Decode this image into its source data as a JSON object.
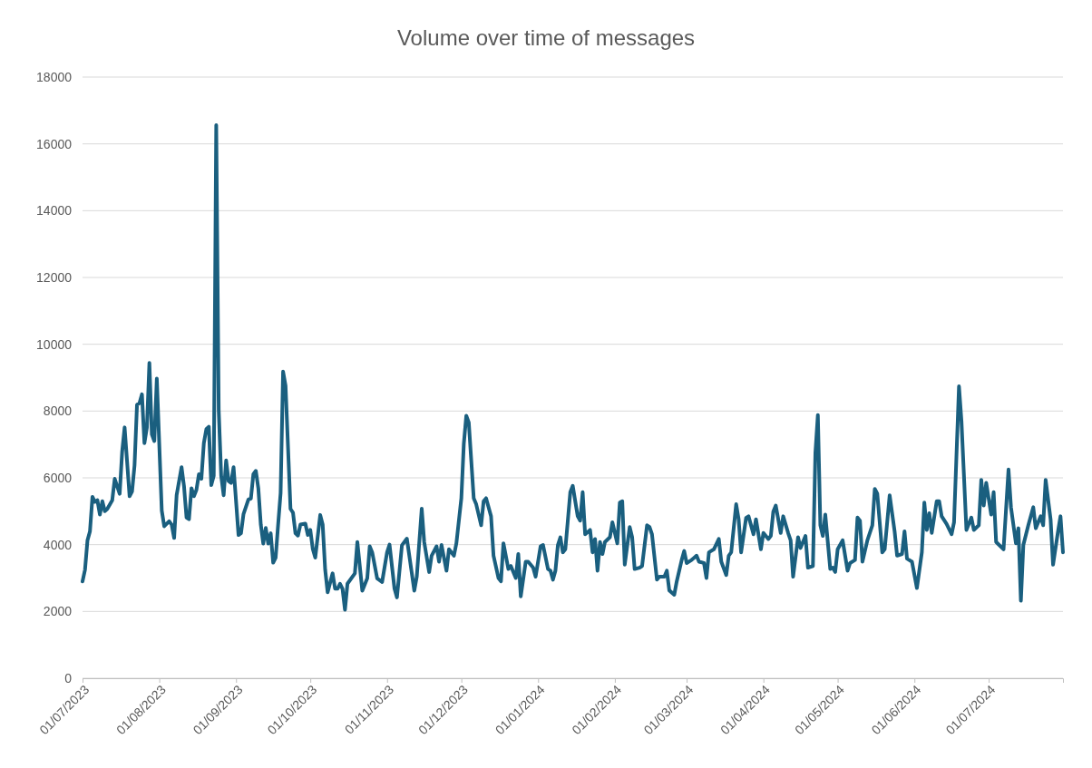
{
  "chart_data": {
    "type": "line",
    "title": "Volume over time of messages",
    "xlim": [
      "2023-07-01",
      "2024-07-31"
    ],
    "xticks": [
      {
        "value": "2023-07-01",
        "label": "01/07/2023"
      },
      {
        "value": "2023-08-01",
        "label": "01/08/2023"
      },
      {
        "value": "2023-09-01",
        "label": "01/09/2023"
      },
      {
        "value": "2023-10-01",
        "label": "01/10/2023"
      },
      {
        "value": "2023-11-01",
        "label": "01/11/2023"
      },
      {
        "value": "2023-12-01",
        "label": "01/12/2023"
      },
      {
        "value": "2024-01-01",
        "label": "01/01/2024"
      },
      {
        "value": "2024-02-01",
        "label": "01/02/2024"
      },
      {
        "value": "2024-03-01",
        "label": "01/03/2024"
      },
      {
        "value": "2024-04-01",
        "label": "01/04/2024"
      },
      {
        "value": "2024-05-01",
        "label": "01/05/2024"
      },
      {
        "value": "2024-06-01",
        "label": "01/06/2024"
      },
      {
        "value": "2024-07-01",
        "label": "01/07/2024"
      }
    ],
    "ylim": [
      0,
      18000
    ],
    "yticks": [
      0,
      2000,
      4000,
      6000,
      8000,
      10000,
      12000,
      14000,
      16000,
      18000
    ],
    "grid": "y",
    "line_style": "solid",
    "x": [
      "2023-07-01",
      "2023-07-02",
      "2023-07-03",
      "2023-07-04",
      "2023-07-05",
      "2023-07-06",
      "2023-07-07",
      "2023-07-08",
      "2023-07-09",
      "2023-07-10",
      "2023-07-11",
      "2023-07-13",
      "2023-07-14",
      "2023-07-16",
      "2023-07-17",
      "2023-07-18",
      "2023-07-20",
      "2023-07-21",
      "2023-07-22",
      "2023-07-23",
      "2023-07-24",
      "2023-07-25",
      "2023-07-26",
      "2023-07-27",
      "2023-07-28",
      "2023-07-29",
      "2023-07-30",
      "2023-07-31",
      "2023-08-02",
      "2023-08-03",
      "2023-08-05",
      "2023-08-06",
      "2023-08-07",
      "2023-08-08",
      "2023-08-10",
      "2023-08-11",
      "2023-08-12",
      "2023-08-13",
      "2023-08-14",
      "2023-08-15",
      "2023-08-16",
      "2023-08-17",
      "2023-08-18",
      "2023-08-19",
      "2023-08-20",
      "2023-08-21",
      "2023-08-22",
      "2023-08-23",
      "2023-08-24",
      "2023-08-25",
      "2023-08-26",
      "2023-08-27",
      "2023-08-28",
      "2023-08-29",
      "2023-08-30",
      "2023-08-31",
      "2023-09-02",
      "2023-09-03",
      "2023-09-04",
      "2023-09-06",
      "2023-09-07",
      "2023-09-08",
      "2023-09-09",
      "2023-09-10",
      "2023-09-11",
      "2023-09-12",
      "2023-09-13",
      "2023-09-14",
      "2023-09-15",
      "2023-09-16",
      "2023-09-17",
      "2023-09-18",
      "2023-09-19",
      "2023-09-20",
      "2023-09-21",
      "2023-09-23",
      "2023-09-24",
      "2023-09-25",
      "2023-09-26",
      "2023-09-27",
      "2023-09-29",
      "2023-09-30",
      "2023-10-01",
      "2023-10-02",
      "2023-10-03",
      "2023-10-05",
      "2023-10-06",
      "2023-10-07",
      "2023-10-08",
      "2023-10-10",
      "2023-10-11",
      "2023-10-12",
      "2023-10-13",
      "2023-10-14",
      "2023-10-15",
      "2023-10-16",
      "2023-10-19",
      "2023-10-20",
      "2023-10-22",
      "2023-10-24",
      "2023-10-25",
      "2023-10-26",
      "2023-10-28",
      "2023-10-30",
      "2023-11-01",
      "2023-11-02",
      "2023-11-04",
      "2023-11-05",
      "2023-11-07",
      "2023-11-09",
      "2023-11-12",
      "2023-11-13",
      "2023-11-15",
      "2023-11-16",
      "2023-11-18",
      "2023-11-19",
      "2023-11-21",
      "2023-11-22",
      "2023-11-23",
      "2023-11-25",
      "2023-11-26",
      "2023-11-28",
      "2023-11-29",
      "2023-12-01",
      "2023-12-02",
      "2023-12-03",
      "2023-12-04",
      "2023-12-06",
      "2023-12-07",
      "2023-12-09",
      "2023-12-10",
      "2023-12-11",
      "2023-12-13",
      "2023-12-14",
      "2023-12-16",
      "2023-12-17",
      "2023-12-18",
      "2023-12-20",
      "2023-12-21",
      "2023-12-23",
      "2023-12-24",
      "2023-12-25",
      "2023-12-27",
      "2023-12-28",
      "2023-12-30",
      "2023-12-31",
      "2024-01-02",
      "2024-01-03",
      "2024-01-05",
      "2024-01-06",
      "2024-01-07",
      "2024-01-08",
      "2024-01-09",
      "2024-01-10",
      "2024-01-11",
      "2024-01-12",
      "2024-01-14",
      "2024-01-15",
      "2024-01-17",
      "2024-01-18",
      "2024-01-19",
      "2024-01-20",
      "2024-01-22",
      "2024-01-23",
      "2024-01-24",
      "2024-01-25",
      "2024-01-26",
      "2024-01-27",
      "2024-01-28",
      "2024-01-30",
      "2024-01-31",
      "2024-02-02",
      "2024-02-03",
      "2024-02-04",
      "2024-02-05",
      "2024-02-07",
      "2024-02-08",
      "2024-02-09",
      "2024-02-11",
      "2024-02-12",
      "2024-02-14",
      "2024-02-15",
      "2024-02-16",
      "2024-02-18",
      "2024-02-19",
      "2024-02-21",
      "2024-02-22",
      "2024-02-23",
      "2024-02-25",
      "2024-02-26",
      "2024-02-28",
      "2024-02-29",
      "2024-03-01",
      "2024-03-03",
      "2024-03-05",
      "2024-03-06",
      "2024-03-08",
      "2024-03-09",
      "2024-03-10",
      "2024-03-12",
      "2024-03-14",
      "2024-03-15",
      "2024-03-17",
      "2024-03-18",
      "2024-03-19",
      "2024-03-21",
      "2024-03-22",
      "2024-03-23",
      "2024-03-25",
      "2024-03-26",
      "2024-03-28",
      "2024-03-29",
      "2024-03-31",
      "2024-04-01",
      "2024-04-03",
      "2024-04-04",
      "2024-04-05",
      "2024-04-06",
      "2024-04-08",
      "2024-04-09",
      "2024-04-11",
      "2024-04-12",
      "2024-04-13",
      "2024-04-15",
      "2024-04-16",
      "2024-04-18",
      "2024-04-19",
      "2024-04-21",
      "2024-04-22",
      "2024-04-23",
      "2024-04-24",
      "2024-04-25",
      "2024-04-26",
      "2024-04-28",
      "2024-04-29",
      "2024-04-30",
      "2024-05-01",
      "2024-05-03",
      "2024-05-05",
      "2024-05-06",
      "2024-05-08",
      "2024-05-09",
      "2024-05-10",
      "2024-05-11",
      "2024-05-13",
      "2024-05-15",
      "2024-05-16",
      "2024-05-17",
      "2024-05-19",
      "2024-05-20",
      "2024-05-22",
      "2024-05-24",
      "2024-05-25",
      "2024-05-27",
      "2024-05-28",
      "2024-05-29",
      "2024-05-31",
      "2024-06-02",
      "2024-06-04",
      "2024-06-05",
      "2024-06-06",
      "2024-06-07",
      "2024-06-08",
      "2024-06-10",
      "2024-06-11",
      "2024-06-12",
      "2024-06-14",
      "2024-06-16",
      "2024-06-17",
      "2024-06-19",
      "2024-06-20",
      "2024-06-22",
      "2024-06-24",
      "2024-06-25",
      "2024-06-27",
      "2024-06-28",
      "2024-06-29",
      "2024-06-30",
      "2024-07-02",
      "2024-07-03",
      "2024-07-04",
      "2024-07-07",
      "2024-07-09",
      "2024-07-10",
      "2024-07-12",
      "2024-07-13",
      "2024-07-14",
      "2024-07-15",
      "2024-07-17",
      "2024-07-19",
      "2024-07-20",
      "2024-07-22",
      "2024-07-23",
      "2024-07-24",
      "2024-07-26",
      "2024-07-27",
      "2024-07-29",
      "2024-07-30",
      "2024-07-31"
    ],
    "series": [
      {
        "color": "#1a5f7f",
        "values": [
          2900,
          3250,
          4130,
          4400,
          5430,
          5280,
          5330,
          4900,
          5300,
          5000,
          5070,
          5330,
          5970,
          5520,
          6780,
          7510,
          5450,
          5590,
          6370,
          8190,
          8240,
          8500,
          7040,
          7510,
          9440,
          7300,
          7100,
          8970,
          5020,
          4550,
          4700,
          4600,
          4200,
          5480,
          6320,
          5740,
          4810,
          4760,
          5690,
          5450,
          5640,
          6110,
          5970,
          7040,
          7460,
          7530,
          5780,
          6060,
          16560,
          8030,
          6060,
          5480,
          6520,
          5900,
          5850,
          6320,
          4290,
          4340,
          4910,
          5350,
          5380,
          6110,
          6210,
          5690,
          4600,
          4030,
          4500,
          4030,
          4340,
          3460,
          3610,
          4600,
          5540,
          9180,
          8760,
          5070,
          4960,
          4340,
          4270,
          4600,
          4630,
          4290,
          4440,
          3870,
          3610,
          4890,
          4600,
          3250,
          2570,
          3140,
          2680,
          2680,
          2830,
          2680,
          2050,
          2830,
          3140,
          4080,
          2620,
          2990,
          3950,
          3770,
          2990,
          2880,
          3770,
          4000,
          2680,
          2420,
          3980,
          4180,
          2620,
          3040,
          5080,
          4080,
          3180,
          3670,
          3950,
          3490,
          3990,
          3220,
          3860,
          3670,
          4040,
          5390,
          7020,
          7860,
          7660,
          5390,
          5210,
          4580,
          5300,
          5390,
          4850,
          3670,
          3000,
          2900,
          4040,
          3270,
          3360,
          3000,
          3720,
          2450,
          3490,
          3490,
          3310,
          3040,
          3950,
          3990,
          3270,
          3220,
          2950,
          3220,
          3990,
          4220,
          3770,
          3860,
          5570,
          5760,
          4850,
          4720,
          5570,
          4310,
          4440,
          3770,
          4170,
          3220,
          4080,
          3720,
          4080,
          4220,
          4670,
          4040,
          5260,
          5300,
          3400,
          4530,
          4220,
          3270,
          3310,
          3360,
          4580,
          4530,
          4310,
          2950,
          3040,
          3040,
          3220,
          2630,
          2500,
          2900,
          3540,
          3810,
          3450,
          3540,
          3670,
          3490,
          3450,
          3000,
          3770,
          3860,
          4170,
          3490,
          3090,
          3670,
          3770,
          5210,
          4760,
          3770,
          4800,
          4850,
          4310,
          4760,
          3860,
          4350,
          4170,
          4260,
          4990,
          5170,
          4350,
          4850,
          4350,
          4130,
          3040,
          4220,
          3900,
          4260,
          3310,
          3360,
          6750,
          7880,
          4580,
          4260,
          4900,
          3270,
          3310,
          3180,
          3860,
          4130,
          3220,
          3450,
          3540,
          4810,
          4720,
          3490,
          4130,
          4580,
          5670,
          5530,
          3770,
          3860,
          5480,
          4400,
          3670,
          3720,
          4400,
          3580,
          3490,
          2700,
          3770,
          5260,
          4440,
          4940,
          4350,
          5300,
          5300,
          4850,
          4620,
          4310,
          4670,
          8740,
          7700,
          4440,
          4810,
          4440,
          4580,
          5940,
          5170,
          5850,
          4900,
          5570,
          4080,
          3860,
          6250,
          5120,
          4040,
          4490,
          2320,
          3990,
          4580,
          5120,
          4490,
          4850,
          4580,
          5940,
          4760,
          3400,
          4400,
          4850,
          3770
        ]
      }
    ]
  }
}
